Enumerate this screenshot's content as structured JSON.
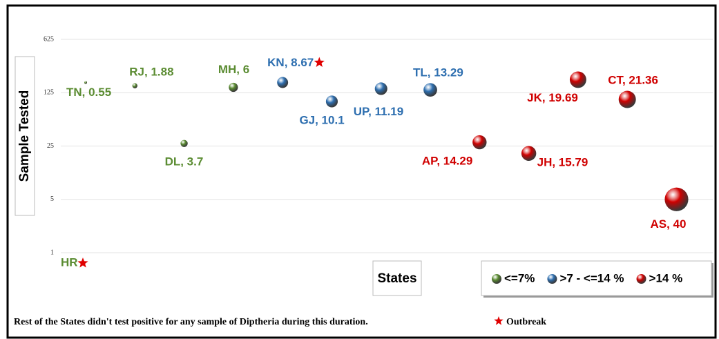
{
  "chart_data": {
    "type": "bubble",
    "y_label": "Sample Tested",
    "x_label": "States",
    "ylim": [
      1,
      625
    ],
    "yticks": [
      1,
      5,
      25,
      125,
      625
    ],
    "log_scale_y": true,
    "grid": true,
    "series": [
      {
        "name": "<=7%",
        "color": "#5b8c32",
        "labels": [
          "TN, 0.55",
          "RJ, 1.88",
          "DL, 3.7",
          "MH, 6"
        ],
        "values": [
          170,
          154,
          27,
          147
        ],
        "sizes": [
          0.55,
          1.88,
          3.7,
          6
        ]
      },
      {
        "name": ">7 - <=14 %",
        "color": "#2e6fb0",
        "labels": [
          "KN, 8.67",
          "GJ, 10.1",
          "UP, 11.19",
          "TL, 13.29"
        ],
        "values": [
          170,
          96,
          141,
          136
        ],
        "sizes": [
          8.67,
          10.1,
          11.19,
          13.29
        ]
      },
      {
        "name": ">14 %",
        "color": "#d00000",
        "labels": [
          "AP, 14.29",
          "JH, 15.79",
          "JK, 19.69",
          "CT, 21.36",
          "AS, 40"
        ],
        "values": [
          28,
          20,
          185,
          102,
          5
        ],
        "sizes": [
          14.29,
          15.79,
          19.69,
          21.36,
          40
        ]
      }
    ],
    "annotation": "HR",
    "outbreak_label": "Outbreak",
    "footnote": "Rest of the States didn't test positive for any sample of Diptheria  during this duration."
  }
}
